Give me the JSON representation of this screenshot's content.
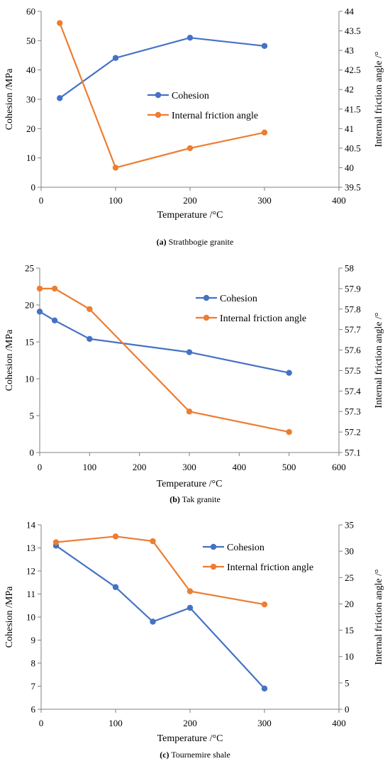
{
  "colors": {
    "cohesion": "#4472C4",
    "friction": "#ED7D31"
  },
  "chart_data": [
    {
      "type": "line",
      "caption_letter": "(a)",
      "caption_text": " Strathbogie granite",
      "xlabel": "Temperature /°C",
      "ylabel": "Cohesion /MPa",
      "y2label": "Internal friction angle /°",
      "xlim": [
        0,
        400
      ],
      "xticks": [
        0,
        100,
        200,
        300,
        400
      ],
      "ylim": [
        0,
        60
      ],
      "yticks": [
        0,
        10,
        20,
        30,
        40,
        50,
        60
      ],
      "y2lim": [
        39.5,
        44
      ],
      "y2ticks": [
        "39.5",
        "40",
        "40.5",
        "41",
        "41.5",
        "42",
        "42.5",
        "43",
        "43.5",
        "44"
      ],
      "legend_placement": "center",
      "series": [
        {
          "name": "Cohesion",
          "axis": "left",
          "x": [
            25,
            100,
            200,
            300
          ],
          "y": [
            30.4,
            44.1,
            51.0,
            48.2
          ]
        },
        {
          "name": "Internal friction angle",
          "axis": "right",
          "x": [
            25,
            100,
            200,
            300
          ],
          "y": [
            43.7,
            40.0,
            40.5,
            40.9
          ]
        }
      ]
    },
    {
      "type": "line",
      "caption_letter": "(b)",
      "caption_text": " Tak granite",
      "xlabel": "Temperature /°C",
      "ylabel": "Cohesion /MPa",
      "y2label": "Internal friction angle /°",
      "xlim": [
        0,
        600
      ],
      "xticks": [
        0,
        100,
        200,
        300,
        400,
        500,
        600
      ],
      "ylim": [
        0,
        25
      ],
      "yticks": [
        0,
        5,
        10,
        15,
        20,
        25
      ],
      "y2lim": [
        57.1,
        58
      ],
      "y2ticks": [
        "57.1",
        "57.2",
        "57.3",
        "57.4",
        "57.5",
        "57.6",
        "57.7",
        "57.8",
        "57.9",
        "58"
      ],
      "legend_placement": "top-right",
      "series": [
        {
          "name": "Cohesion",
          "axis": "left",
          "x": [
            0,
            30,
            100,
            300,
            500
          ],
          "y": [
            19.1,
            17.9,
            15.4,
            13.6,
            10.8
          ]
        },
        {
          "name": "Internal friction angle",
          "axis": "right",
          "x": [
            0,
            30,
            100,
            300,
            500
          ],
          "y": [
            57.9,
            57.9,
            57.8,
            57.3,
            57.2
          ]
        }
      ]
    },
    {
      "type": "line",
      "caption_letter": "(c)",
      "caption_text": " Tournemire shale",
      "xlabel": "Temperature /°C",
      "ylabel": "Cohesion /MPa",
      "y2label": "Internal friction angle /°",
      "xlim": [
        0,
        400
      ],
      "xticks": [
        0,
        100,
        200,
        300,
        400
      ],
      "ylim": [
        6,
        14
      ],
      "yticks": [
        6,
        7,
        8,
        9,
        10,
        11,
        12,
        13,
        14
      ],
      "y2lim": [
        0,
        35
      ],
      "y2ticks": [
        "0",
        "5",
        "10",
        "15",
        "20",
        "25",
        "30",
        "35"
      ],
      "legend_placement": "top-right",
      "series": [
        {
          "name": "Cohesion",
          "axis": "left",
          "x": [
            20,
            100,
            150,
            200,
            300
          ],
          "y": [
            13.1,
            11.3,
            9.8,
            10.4,
            6.9
          ]
        },
        {
          "name": "Internal friction angle",
          "axis": "right",
          "x": [
            20,
            100,
            150,
            200,
            300
          ],
          "y": [
            31.7,
            32.8,
            31.9,
            22.4,
            19.9
          ]
        }
      ]
    }
  ]
}
